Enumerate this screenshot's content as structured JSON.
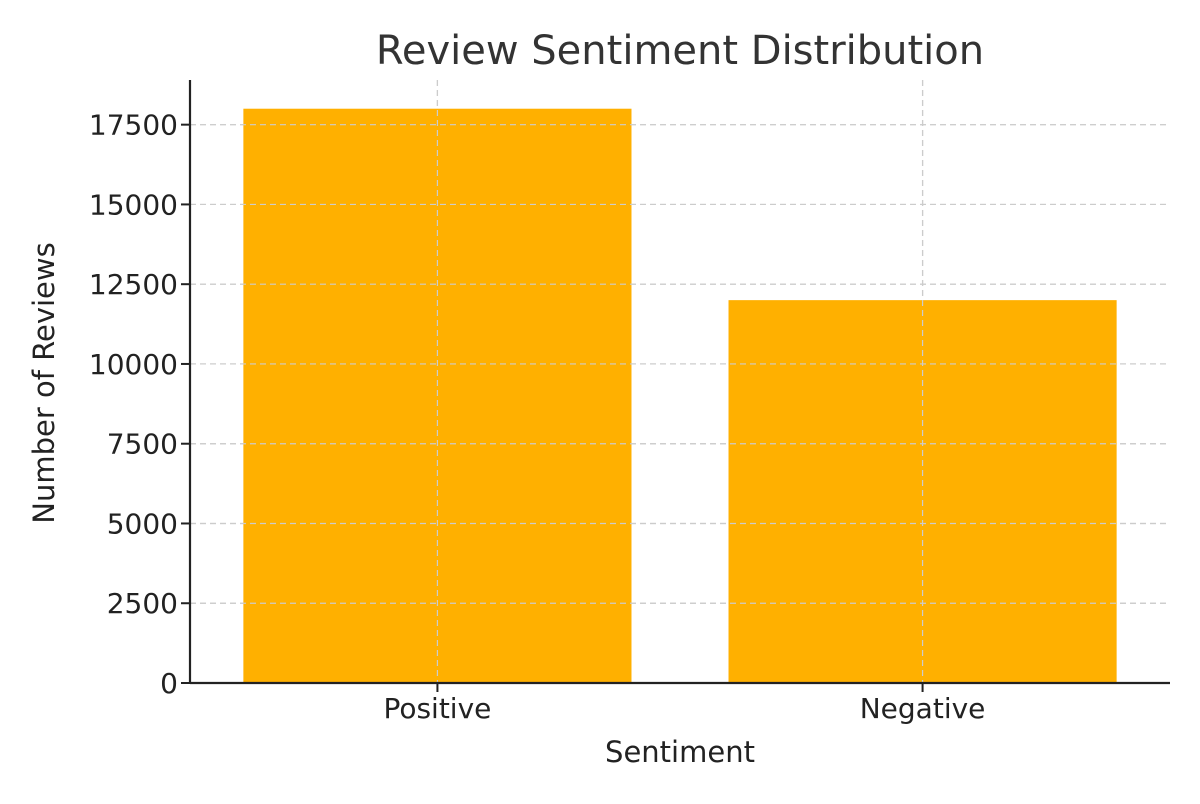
{
  "chart_data": {
    "type": "bar",
    "title": "Review Sentiment Distribution",
    "xlabel": "Sentiment",
    "ylabel": "Number of Reviews",
    "categories": [
      "Positive",
      "Negative"
    ],
    "values": [
      18000,
      12000
    ],
    "ylim": [
      0,
      18900
    ],
    "yticks": [
      0,
      2500,
      5000,
      7500,
      10000,
      12500,
      15000,
      17500
    ],
    "ytick_labels": [
      "0",
      "2500",
      "5000",
      "7500",
      "10000",
      "12500",
      "15000",
      "17500"
    ],
    "bar_color": "#FFB000",
    "grid": true,
    "legend": "none"
  }
}
